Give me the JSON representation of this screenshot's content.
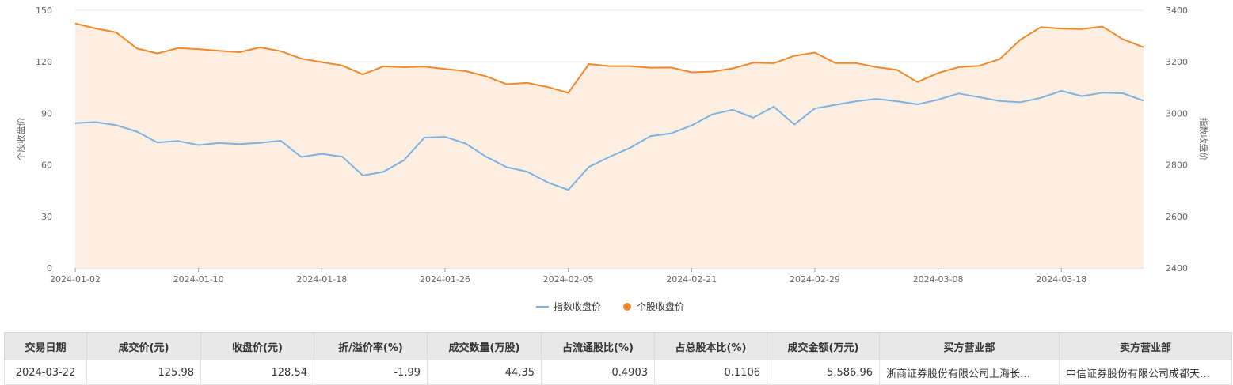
{
  "colors": {
    "index_line": "#7fb2e0",
    "stock_line": "#f0892a",
    "stock_area": "#fdeee2",
    "grid": "#e6e6e6"
  },
  "chart_data": {
    "type": "line",
    "y_left": {
      "label": "个股收盘价",
      "ticks": [
        "0",
        "30",
        "60",
        "90",
        "120",
        "150"
      ],
      "range": [
        0,
        150
      ]
    },
    "y_right": {
      "label": "指数收盘价",
      "ticks": [
        "2400",
        "2600",
        "2800",
        "3000",
        "3200",
        "3400"
      ],
      "range": [
        2400,
        3400
      ]
    },
    "x_tick_labels": [
      "2024-01-02",
      "2024-01-10",
      "2024-01-18",
      "2024-01-26",
      "2024-02-05",
      "2024-02-21",
      "2024-02-29",
      "2024-03-08",
      "2024-03-18"
    ],
    "x_tick_positions": [
      0,
      6,
      12,
      18,
      24,
      30,
      36,
      42,
      48
    ],
    "legend": {
      "placement": "bottom-center"
    },
    "grid": true,
    "series": [
      {
        "name": "指数收盘价",
        "axis": "right",
        "values": [
          2962,
          2966,
          2954,
          2929,
          2887,
          2893,
          2877,
          2885,
          2881,
          2886,
          2894,
          2831,
          2843,
          2832,
          2759,
          2773,
          2818,
          2906,
          2909,
          2883,
          2832,
          2791,
          2774,
          2732,
          2703,
          2792,
          2831,
          2866,
          2912,
          2922,
          2953,
          2996,
          3014,
          2983,
          3026,
          2957,
          3019,
          3033,
          3047,
          3056,
          3047,
          3035,
          3053,
          3077,
          3063,
          3048,
          3043,
          3060,
          3087,
          3067,
          3080,
          3078,
          3049
        ],
        "dates": [
          "2024-01-02",
          "2024-01-03",
          "2024-01-04",
          "2024-01-05",
          "2024-01-08",
          "2024-01-09",
          "2024-01-10",
          "2024-01-11",
          "2024-01-12",
          "2024-01-15",
          "2024-01-16",
          "2024-01-17",
          "2024-01-18",
          "2024-01-19",
          "2024-01-22",
          "2024-01-23",
          "2024-01-24",
          "2024-01-25",
          "2024-01-26",
          "2024-01-29",
          "2024-01-30",
          "2024-01-31",
          "2024-02-01",
          "2024-02-02",
          "2024-02-05",
          "2024-02-06",
          "2024-02-07",
          "2024-02-08",
          "2024-02-19",
          "2024-02-20",
          "2024-02-21",
          "2024-02-22",
          "2024-02-23",
          "2024-02-26",
          "2024-02-27",
          "2024-02-28",
          "2024-02-29",
          "2024-03-01",
          "2024-03-04",
          "2024-03-05",
          "2024-03-06",
          "2024-03-07",
          "2024-03-08",
          "2024-03-11",
          "2024-03-12",
          "2024-03-13",
          "2024-03-14",
          "2024-03-15",
          "2024-03-18",
          "2024-03-19",
          "2024-03-20",
          "2024-03-21",
          "2024-03-22"
        ]
      },
      {
        "name": "个股收盘价",
        "axis": "left",
        "values": [
          142.3,
          139.4,
          137.1,
          127.8,
          124.9,
          128.0,
          127.4,
          126.4,
          125.6,
          128.4,
          126.2,
          121.9,
          119.8,
          117.9,
          112.7,
          117.4,
          116.9,
          117.2,
          115.8,
          114.6,
          111.6,
          107.0,
          107.7,
          105.3,
          101.9,
          118.7,
          117.5,
          117.5,
          116.6,
          116.7,
          113.9,
          114.3,
          116.2,
          119.5,
          119.2,
          123.5,
          125.4,
          119.3,
          119.3,
          116.9,
          115.3,
          108.2,
          113.5,
          116.9,
          117.7,
          121.6,
          132.8,
          140.2,
          139.3,
          139.1,
          140.5,
          133.1,
          128.5
        ]
      }
    ]
  },
  "table": {
    "headers": [
      "交易日期",
      "成交价(元)",
      "收盘价(元)",
      "折/溢价率(%)",
      "成交数量(万股)",
      "占流通股比(%)",
      "占总股本比(%)",
      "成交金额(万元)",
      "买方营业部",
      "卖方营业部"
    ],
    "rows": [
      [
        "2024-03-22",
        "125.98",
        "128.54",
        "-1.99",
        "44.35",
        "0.4903",
        "0.1106",
        "5,586.96",
        "浙商证券股份有限公司上海长…",
        "中信证券股份有限公司成都天…"
      ]
    ]
  }
}
